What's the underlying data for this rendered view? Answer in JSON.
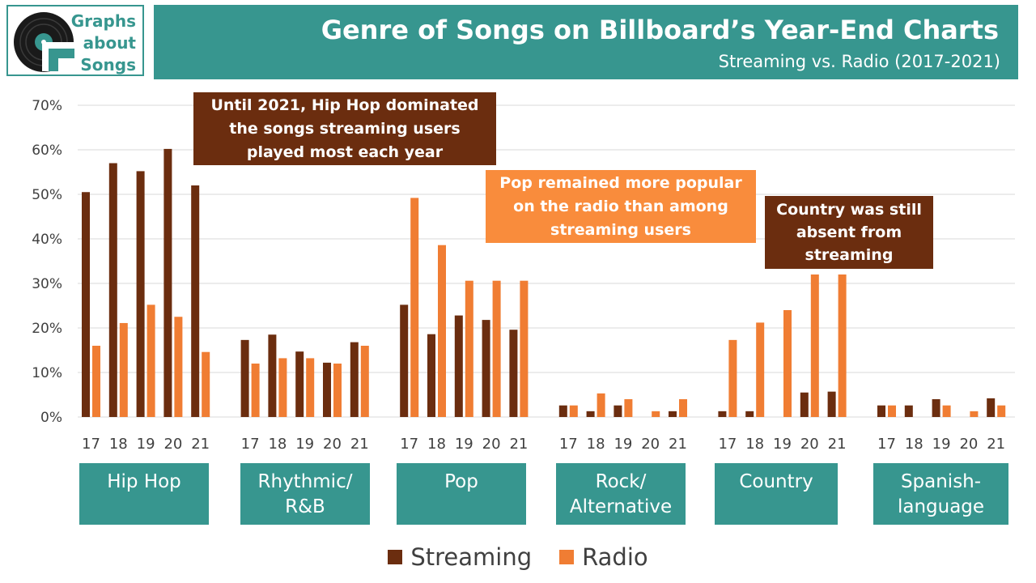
{
  "logo": {
    "lines": [
      "Graphs",
      "about",
      "Songs"
    ]
  },
  "header": {
    "title": "Genre of Songs on Billboard’s Year-End Charts",
    "subtitle": "Streaming vs. Radio (2017-2021)"
  },
  "colors": {
    "streaming": "#6b2d0f",
    "radio": "#f07d33",
    "accent": "#37968f",
    "pop_box": "#f98c3c"
  },
  "annotations": {
    "hiphop": [
      "Until 2021, Hip Hop dominated",
      "the songs streaming users",
      "played most each year"
    ],
    "pop": [
      "Pop remained more popular",
      "on the radio than among",
      "streaming users"
    ],
    "country": [
      "Country was still",
      "absent from",
      "streaming"
    ]
  },
  "chart_data": {
    "type": "bar",
    "ylim": [
      0,
      70
    ],
    "yticks": [
      "0%",
      "10%",
      "20%",
      "30%",
      "40%",
      "50%",
      "60%",
      "70%"
    ],
    "year_labels": [
      "17",
      "18",
      "19",
      "20",
      "21"
    ],
    "grid": true,
    "legend_position": "bottom",
    "groups": [
      {
        "label": [
          "Hip Hop"
        ],
        "streaming": [
          50.5,
          57.0,
          55.2,
          60.2,
          52.0
        ],
        "radio": [
          16.0,
          21.1,
          25.2,
          22.5,
          14.6
        ]
      },
      {
        "label": [
          "Rhythmic/",
          "R&B"
        ],
        "streaming": [
          17.3,
          18.5,
          14.7,
          12.2,
          16.8
        ],
        "radio": [
          12.0,
          13.2,
          13.2,
          12.0,
          16.0
        ]
      },
      {
        "label": [
          "Pop"
        ],
        "streaming": [
          25.2,
          18.6,
          22.8,
          21.8,
          19.6
        ],
        "radio": [
          49.2,
          38.6,
          30.6,
          30.6,
          30.6
        ]
      },
      {
        "label": [
          "Rock/",
          "Alternative"
        ],
        "streaming": [
          2.6,
          1.3,
          2.6,
          0,
          1.3
        ],
        "radio": [
          2.6,
          5.3,
          4.0,
          1.3,
          4.0
        ]
      },
      {
        "label": [
          "Country"
        ],
        "streaming": [
          1.3,
          1.3,
          0,
          5.5,
          5.7
        ],
        "radio": [
          17.3,
          21.2,
          24.0,
          32.0,
          32.0
        ]
      },
      {
        "label": [
          "Spanish-",
          "language"
        ],
        "streaming": [
          2.6,
          2.6,
          4.0,
          0,
          4.2
        ],
        "radio": [
          2.6,
          0,
          2.6,
          1.3,
          2.6
        ]
      }
    ],
    "series": [
      {
        "name": "Streaming"
      },
      {
        "name": "Radio"
      }
    ]
  }
}
